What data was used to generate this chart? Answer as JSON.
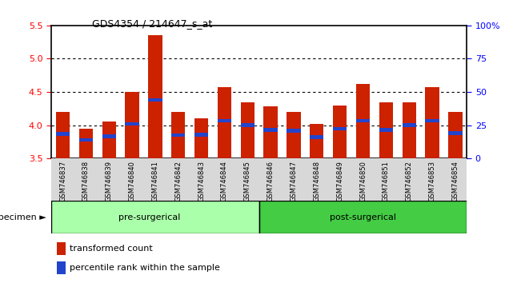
{
  "title": "GDS4354 / 214647_s_at",
  "samples": [
    "GSM746837",
    "GSM746838",
    "GSM746839",
    "GSM746840",
    "GSM746841",
    "GSM746842",
    "GSM746843",
    "GSM746844",
    "GSM746845",
    "GSM746846",
    "GSM746847",
    "GSM746848",
    "GSM746849",
    "GSM746850",
    "GSM746851",
    "GSM746852",
    "GSM746853",
    "GSM746854"
  ],
  "red_values": [
    4.2,
    3.95,
    4.06,
    4.5,
    5.35,
    4.2,
    4.1,
    4.57,
    4.35,
    4.28,
    4.2,
    4.02,
    4.3,
    4.62,
    4.35,
    4.35,
    4.57,
    4.2
  ],
  "blue_values": [
    3.87,
    3.78,
    3.83,
    4.02,
    4.38,
    3.85,
    3.86,
    4.07,
    4.0,
    3.93,
    3.92,
    3.82,
    3.95,
    4.07,
    3.93,
    4.0,
    4.07,
    3.88
  ],
  "pre_surgical_count": 9,
  "post_surgical_count": 9,
  "ymin": 3.5,
  "ymax": 5.5,
  "yticks": [
    3.5,
    4.0,
    4.5,
    5.0,
    5.5
  ],
  "right_yticks": [
    0,
    25,
    50,
    75,
    100
  ],
  "right_ylabels": [
    "0",
    "25",
    "50",
    "75",
    "100%"
  ],
  "bar_color": "#cc2200",
  "blue_color": "#2244cc",
  "pre_color": "#aaffaa",
  "post_color": "#44cc44",
  "bg_color": "#ffffff",
  "bar_width": 0.6,
  "legend_red": "transformed count",
  "legend_blue": "percentile rank within the sample",
  "specimen_label": "specimen",
  "pre_label": "pre-surgerical",
  "post_label": "post-surgerical",
  "blue_bar_height": 0.055
}
